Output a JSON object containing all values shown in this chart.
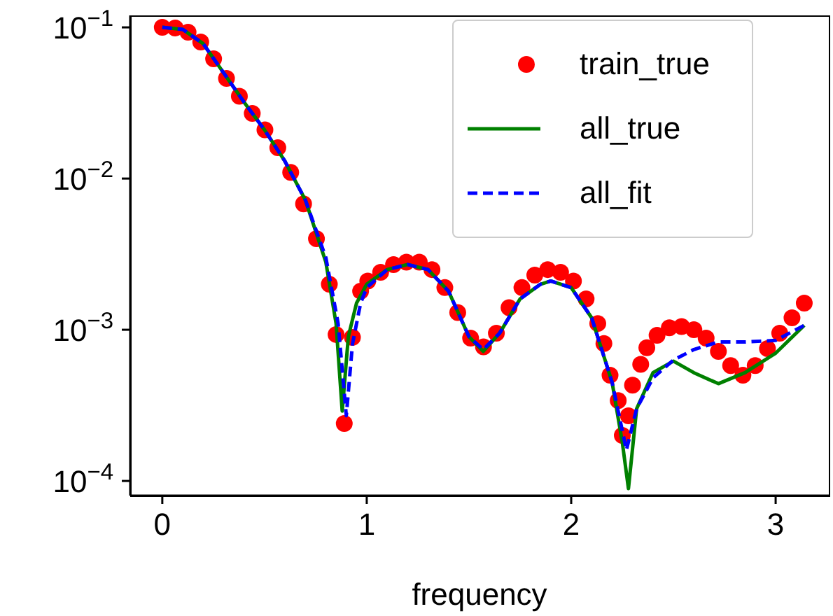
{
  "chart_data": {
    "type": "line",
    "xlabel": "frequency",
    "log": "y",
    "grid": false,
    "legend": "top right",
    "xlim": [
      -0.157,
      3.26
    ],
    "xticks": [
      0,
      1,
      2,
      3
    ],
    "ylim": [
      8e-05,
      0.12
    ],
    "yticks": [
      {
        "value": 0.1,
        "label": "10$^{−1}$"
      },
      {
        "value": 0.01,
        "label": "10$^{−2}$"
      },
      {
        "value": 0.001,
        "label": "10$^{−3}$"
      },
      {
        "value": 0.0001,
        "label": "10$^{−4}$"
      }
    ],
    "series": [
      {
        "name": "train_true",
        "type": "scatter",
        "marker": "circle",
        "color": "#ff0000",
        "x": [
          0,
          0.063,
          0.126,
          0.188,
          0.251,
          0.314,
          0.377,
          0.44,
          0.502,
          0.565,
          0.628,
          0.691,
          0.754,
          0.817,
          0.85,
          0.89,
          0.93,
          0.97,
          1.005,
          1.068,
          1.131,
          1.194,
          1.257,
          1.319,
          1.382,
          1.445,
          1.508,
          1.571,
          1.634,
          1.696,
          1.759,
          1.822,
          1.885,
          1.948,
          2.011,
          2.073,
          2.13,
          2.16,
          2.19,
          2.23,
          2.25,
          2.28,
          2.3,
          2.34,
          2.37,
          2.42,
          2.48,
          2.54,
          2.6,
          2.66,
          2.72,
          2.78,
          2.84,
          2.9,
          2.96,
          3.02,
          3.08,
          3.14
        ],
        "values": [
          0.1,
          0.099,
          0.093,
          0.08,
          0.062,
          0.046,
          0.035,
          0.027,
          0.021,
          0.016,
          0.011,
          0.0068,
          0.004,
          0.002,
          0.00093,
          0.00024,
          0.00089,
          0.0018,
          0.0021,
          0.0024,
          0.0027,
          0.0028,
          0.0028,
          0.0025,
          0.0019,
          0.0013,
          0.00088,
          0.00077,
          0.00095,
          0.0014,
          0.0019,
          0.0023,
          0.0025,
          0.0024,
          0.0021,
          0.0016,
          0.0011,
          0.00081,
          0.0005,
          0.00034,
          0.0002,
          0.00027,
          0.00043,
          0.00059,
          0.00076,
          0.00092,
          0.00103,
          0.00105,
          0.001,
          0.00088,
          0.00072,
          0.00058,
          0.0005,
          0.00058,
          0.00075,
          0.00095,
          0.0012,
          0.0015
        ]
      },
      {
        "name": "all_true",
        "line_style": "solid",
        "marker": "none",
        "color": "#008000",
        "x": [
          0,
          0.1,
          0.2,
          0.3,
          0.4,
          0.5,
          0.6,
          0.7,
          0.8,
          0.85,
          0.88,
          0.91,
          0.95,
          1.0,
          1.1,
          1.2,
          1.3,
          1.4,
          1.5,
          1.57,
          1.65,
          1.75,
          1.85,
          1.9,
          2.0,
          2.1,
          2.2,
          2.25,
          2.28,
          2.32,
          2.4,
          2.5,
          2.6,
          2.72,
          2.85,
          3.0,
          3.14
        ],
        "values": [
          0.1,
          0.097,
          0.078,
          0.05,
          0.032,
          0.021,
          0.013,
          0.0072,
          0.0028,
          0.0011,
          0.00029,
          0.0009,
          0.0015,
          0.002,
          0.0025,
          0.0027,
          0.0025,
          0.0018,
          0.0009,
          0.00072,
          0.00095,
          0.0016,
          0.002,
          0.0021,
          0.0019,
          0.0012,
          0.00045,
          0.00018,
          8.9e-05,
          0.0003,
          0.00052,
          0.00062,
          0.00052,
          0.00044,
          0.00052,
          0.0007,
          0.00107
        ]
      },
      {
        "name": "all_fit",
        "line_style": "dashed",
        "marker": "none",
        "color": "#0000ff",
        "x": [
          0,
          0.1,
          0.2,
          0.3,
          0.4,
          0.5,
          0.6,
          0.7,
          0.8,
          0.86,
          0.9,
          0.93,
          0.97,
          1.0,
          1.1,
          1.2,
          1.3,
          1.4,
          1.5,
          1.57,
          1.65,
          1.75,
          1.85,
          1.9,
          2.0,
          2.1,
          2.2,
          2.27,
          2.32,
          2.4,
          2.5,
          2.6,
          2.72,
          2.85,
          3.0,
          3.14
        ],
        "values": [
          0.1,
          0.097,
          0.078,
          0.05,
          0.032,
          0.021,
          0.013,
          0.0072,
          0.003,
          0.0011,
          0.00027,
          0.0008,
          0.0015,
          0.0019,
          0.0025,
          0.0027,
          0.0025,
          0.0018,
          0.0009,
          0.00074,
          0.00095,
          0.0016,
          0.002,
          0.0021,
          0.0019,
          0.0012,
          0.00045,
          0.00016,
          0.0003,
          0.00048,
          0.00063,
          0.00074,
          0.00083,
          0.00083,
          0.00085,
          0.00107
        ]
      }
    ]
  }
}
